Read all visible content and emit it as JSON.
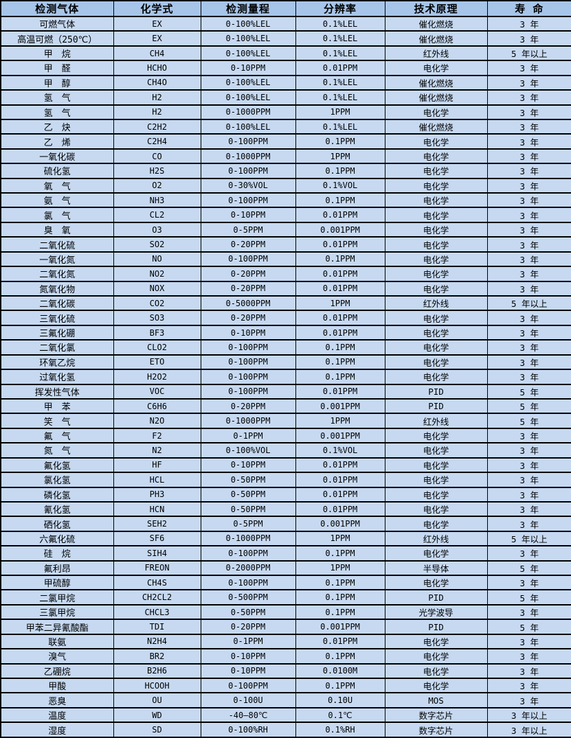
{
  "colors": {
    "header_bg": "#a7c5e9",
    "row_bg": "#c6d9f1",
    "border": "#000000",
    "text": "#000000"
  },
  "table": {
    "headers": [
      "检测气体",
      "化学式",
      "检测量程",
      "分辨率",
      "技术原理",
      "寿 命"
    ],
    "column_keys": [
      "gas",
      "formula",
      "range",
      "resolution",
      "principle",
      "lifespan"
    ],
    "rows": [
      [
        "可燃气体",
        "EX",
        "0-100%LEL",
        "0.1%LEL",
        "催化燃烧",
        "3 年"
      ],
      [
        "高温可燃（250℃）",
        "EX",
        "0-100%LEL",
        "0.1%LEL",
        "催化燃烧",
        "3 年"
      ],
      [
        "甲　烷",
        "CH4",
        "0-100%LEL",
        "0.1%LEL",
        "红外线",
        "5 年以上"
      ],
      [
        "甲　醛",
        "HCHO",
        "0-10PPM",
        "0.01PPM",
        "电化学",
        "3 年"
      ],
      [
        "甲　醇",
        "CH4O",
        "0-100%LEL",
        "0.1%LEL",
        "催化燃烧",
        "3 年"
      ],
      [
        "氢　气",
        "H2",
        "0-100%LEL",
        "0.1%LEL",
        "催化燃烧",
        "3 年"
      ],
      [
        "氢　气",
        "H2",
        "0-1000PPM",
        "1PPM",
        "电化学",
        "3 年"
      ],
      [
        "乙　炔",
        "C2H2",
        "0-100%LEL",
        "0.1%LEL",
        "催化燃烧",
        "3 年"
      ],
      [
        "乙　烯",
        "C2H4",
        "0-100PPM",
        "0.1PPM",
        "电化学",
        "3 年"
      ],
      [
        "一氧化碳",
        "CO",
        "0-1000PPM",
        "1PPM",
        "电化学",
        "3 年"
      ],
      [
        "硫化氢",
        "H2S",
        "0-100PPM",
        "0.1PPM",
        "电化学",
        "3 年"
      ],
      [
        "氧　气",
        "O2",
        "0-30%VOL",
        "0.1%VOL",
        "电化学",
        "3 年"
      ],
      [
        "氨　气",
        "NH3",
        "0-100PPM",
        "0.1PPM",
        "电化学",
        "3 年"
      ],
      [
        "氯　气",
        "CL2",
        "0-10PPM",
        "0.01PPM",
        "电化学",
        "3 年"
      ],
      [
        "臭　氧",
        "O3",
        "0-5PPM",
        "0.001PPM",
        "电化学",
        "3 年"
      ],
      [
        "二氧化硫",
        "SO2",
        "0-20PPM",
        "0.01PPM",
        "电化学",
        "3 年"
      ],
      [
        "一氧化氮",
        "NO",
        "0-100PPM",
        "0.1PPM",
        "电化学",
        "3 年"
      ],
      [
        "二氧化氮",
        "NO2",
        "0-20PPM",
        "0.01PPM",
        "电化学",
        "3 年"
      ],
      [
        "氮氧化物",
        "NOX",
        "0-20PPM",
        "0.01PPM",
        "电化学",
        "3 年"
      ],
      [
        "二氧化碳",
        "CO2",
        "0-5000PPM",
        "1PPM",
        "红外线",
        "5 年以上"
      ],
      [
        "三氧化硫",
        "SO3",
        "0-20PPM",
        "0.01PPM",
        "电化学",
        "3 年"
      ],
      [
        "三氟化硼",
        "BF3",
        "0-10PPM",
        "0.01PPM",
        "电化学",
        "3 年"
      ],
      [
        "二氧化氯",
        "CLO2",
        "0-100PPM",
        "0.1PPM",
        "电化学",
        "3 年"
      ],
      [
        "环氧乙烷",
        "ETO",
        "0-100PPM",
        "0.1PPM",
        "电化学",
        "3 年"
      ],
      [
        "过氧化氢",
        "H2O2",
        "0-100PPM",
        "0.1PPM",
        "电化学",
        "3 年"
      ],
      [
        "挥发性气体",
        "VOC",
        "0-100PPM",
        "0.01PPM",
        "PID",
        "5 年"
      ],
      [
        "甲　苯",
        "C6H6",
        "0-20PPM",
        "0.001PPM",
        "PID",
        "5 年"
      ],
      [
        "笑　气",
        "N2O",
        "0-1000PPM",
        "1PPM",
        "红外线",
        "5 年"
      ],
      [
        "氟　气",
        "F2",
        "0-1PPM",
        "0.001PPM",
        "电化学",
        "3 年"
      ],
      [
        "氮　气",
        "N2",
        "0-100%VOL",
        "0.1%VOL",
        "电化学",
        "3 年"
      ],
      [
        "氟化氢",
        "HF",
        "0-10PPM",
        "0.01PPM",
        "电化学",
        "3 年"
      ],
      [
        "氯化氢",
        "HCL",
        "0-50PPM",
        "0.01PPM",
        "电化学",
        "3 年"
      ],
      [
        "磷化氢",
        "PH3",
        "0-50PPM",
        "0.01PPM",
        "电化学",
        "3 年"
      ],
      [
        "氰化氢",
        "HCN",
        "0-50PPM",
        "0.01PPM",
        "电化学",
        "3 年"
      ],
      [
        "硒化氢",
        "SEH2",
        "0-5PPM",
        "0.001PPM",
        "电化学",
        "3 年"
      ],
      [
        "六氟化硫",
        "SF6",
        "0-1000PPM",
        "1PPM",
        "红外线",
        "5 年以上"
      ],
      [
        "硅　烷",
        "SIH4",
        "0-100PPM",
        "0.1PPM",
        "电化学",
        "3 年"
      ],
      [
        "氟利昂",
        "FREON",
        "0-2000PPM",
        "1PPM",
        "半导体",
        "5 年"
      ],
      [
        "甲硫醇",
        "CH4S",
        "0-100PPM",
        "0.1PPM",
        "电化学",
        "3 年"
      ],
      [
        "二氯甲烷",
        "CH2CL2",
        "0-500PPM",
        "0.1PPM",
        "PID",
        "5 年"
      ],
      [
        "三氯甲烷",
        "CHCL3",
        "0-50PPM",
        "0.1PPM",
        "光学波导",
        "3 年"
      ],
      [
        "甲苯二异氰酸酯",
        "TDI",
        "0-20PPM",
        "0.001PPM",
        "PID",
        "5 年"
      ],
      [
        "联氨",
        "N2H4",
        "0-1PPM",
        "0.01PPM",
        "电化学",
        "3 年"
      ],
      [
        "溴气",
        "BR2",
        "0-10PPM",
        "0.1PPM",
        "电化学",
        "3 年"
      ],
      [
        "乙硼烷",
        "B2H6",
        "0-10PPM",
        "0.0100M",
        "电化学",
        "3 年"
      ],
      [
        "甲酸",
        "HCOOH",
        "0-100PPM",
        "0.1PPM",
        "电化学",
        "3 年"
      ],
      [
        "恶臭",
        "OU",
        "0-100U",
        "0.10U",
        "MOS",
        "3 年"
      ],
      [
        "温度",
        "WD",
        "-40—80℃",
        "0.1℃",
        "数字芯片",
        "3 年以上"
      ],
      [
        "湿度",
        "SD",
        "0-100%RH",
        "0.1%RH",
        "数字芯片",
        "3 年以上"
      ]
    ]
  }
}
